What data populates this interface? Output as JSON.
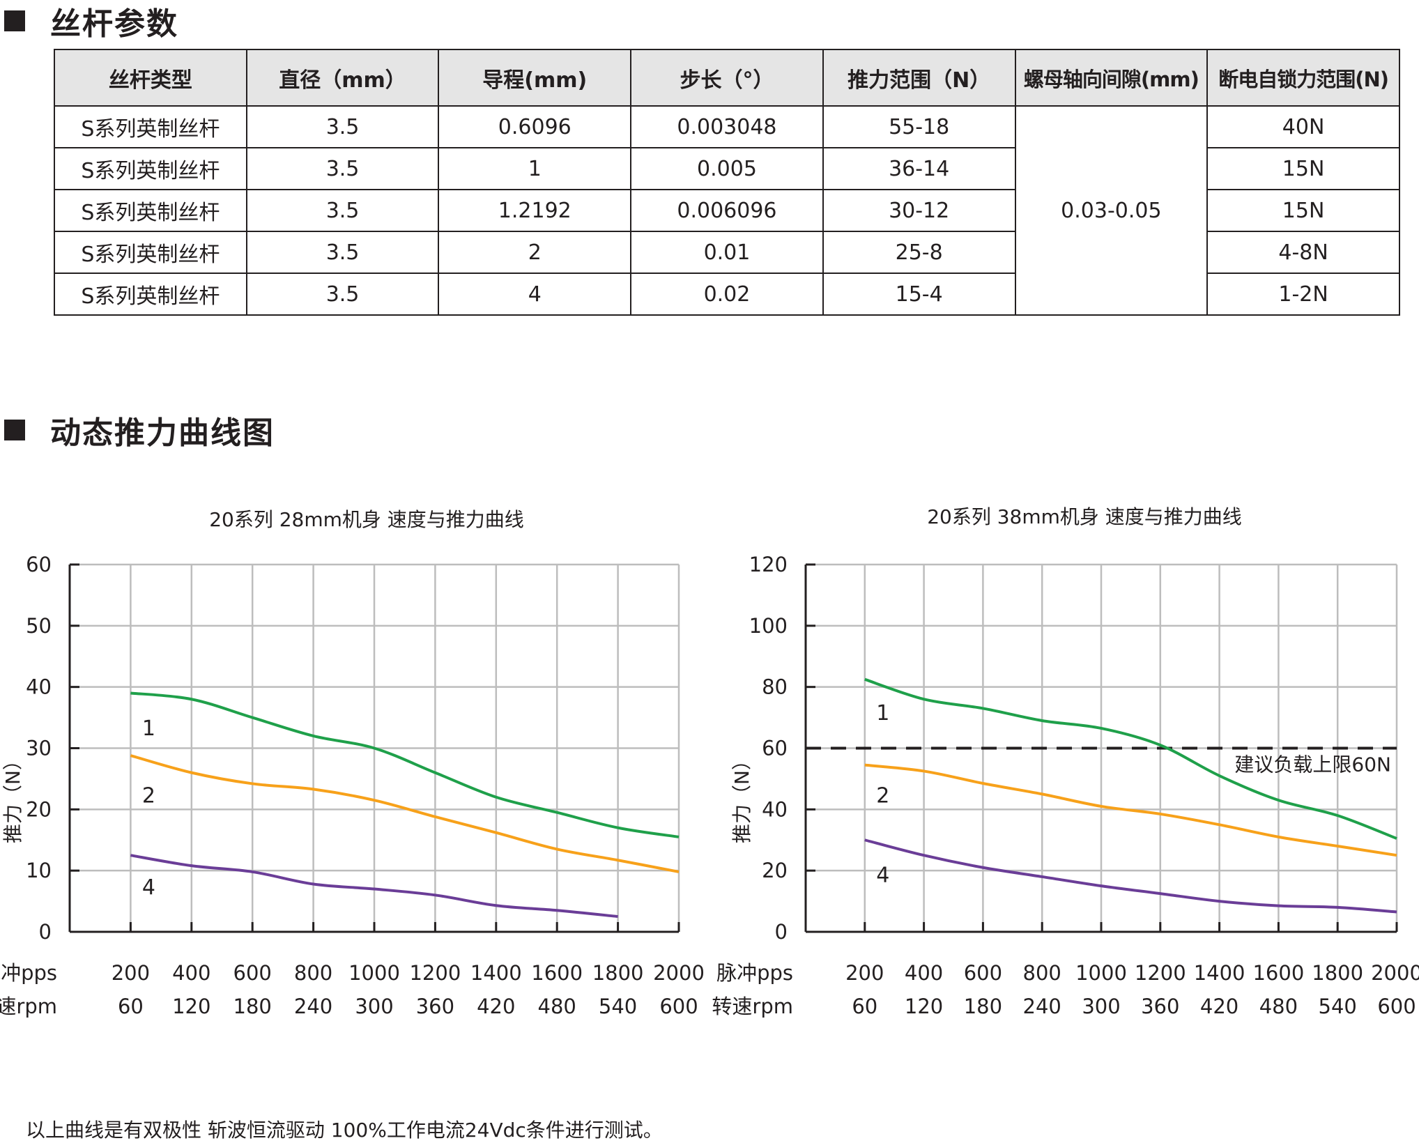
{
  "section1": {
    "title": "丝杆参数"
  },
  "table": {
    "headers": [
      "丝杆类型",
      "直径（mm）",
      "导程(mm)",
      "步长（°）",
      "推力范围（N）",
      "螺母轴向间隙(mm)",
      "断电自锁力范围(N)"
    ],
    "rows": [
      [
        "S系列英制丝杆",
        "3.5",
        "0.6096",
        "0.003048",
        "55-18",
        "40N"
      ],
      [
        "S系列英制丝杆",
        "3.5",
        "1",
        "0.005",
        "36-14",
        "15N"
      ],
      [
        "S系列英制丝杆",
        "3.5",
        "1.2192",
        "0.006096",
        "30-12",
        "15N"
      ],
      [
        "S系列英制丝杆",
        "3.5",
        "2",
        "0.01",
        "25-8",
        "4-8N"
      ],
      [
        "S系列英制丝杆",
        "3.5",
        "4",
        "0.02",
        "15-4",
        "1-2N"
      ]
    ],
    "merged_backlash": "0.03-0.05"
  },
  "section2": {
    "title": "动态推力曲线图"
  },
  "footer": "以上曲线是有双极性 斩波恒流驱动 100%工作电流24Vdc条件进行测试。",
  "chart_data": [
    {
      "type": "line",
      "title": "20系列 28mm机身 速度与推力曲线",
      "ylabel": "推力（N）",
      "ylim": [
        0,
        60
      ],
      "yticks": [
        0,
        10,
        20,
        30,
        40,
        50,
        60
      ],
      "xlim": [
        0,
        2000
      ],
      "x": [
        200,
        400,
        600,
        800,
        1000,
        1200,
        1400,
        1600,
        1800,
        2000
      ],
      "x_row_label": "脉冲pps",
      "x2_row_label": "转速rpm",
      "x2": [
        60,
        120,
        180,
        240,
        300,
        360,
        420,
        480,
        540,
        600
      ],
      "grid": true,
      "series": [
        {
          "name": "1",
          "color": "#1fa04a",
          "values": [
            39,
            38,
            35,
            32,
            30,
            26,
            22,
            19.5,
            17,
            15.5
          ]
        },
        {
          "name": "2",
          "color": "#f7a11a",
          "values": [
            28.8,
            26,
            24.2,
            23.3,
            21.5,
            18.8,
            16.2,
            13.5,
            11.7,
            9.8
          ]
        },
        {
          "name": "4",
          "color": "#6a3d97",
          "values": [
            12.5,
            10.8,
            9.8,
            7.8,
            7,
            6,
            4.3,
            3.5,
            2.5,
            null
          ]
        }
      ],
      "label_values": [
        33.5,
        22.5,
        7.5
      ]
    },
    {
      "type": "line",
      "title": "20系列 38mm机身 速度与推力曲线",
      "ylabel": "推力（N）",
      "ylim": [
        0,
        120
      ],
      "yticks": [
        0,
        20,
        40,
        60,
        80,
        100,
        120
      ],
      "xlim": [
        0,
        2000
      ],
      "x": [
        200,
        400,
        600,
        800,
        1000,
        1200,
        1400,
        1600,
        1800,
        2000
      ],
      "x_row_label": "脉冲pps",
      "x2_row_label": "转速rpm",
      "x2": [
        60,
        120,
        180,
        240,
        300,
        360,
        420,
        480,
        540,
        600
      ],
      "grid": true,
      "series": [
        {
          "name": "1",
          "color": "#1fa04a",
          "values": [
            82.5,
            76,
            73,
            69,
            66.5,
            61,
            51,
            43,
            38,
            30.5
          ]
        },
        {
          "name": "2",
          "color": "#f7a11a",
          "values": [
            54.5,
            52.5,
            48.5,
            45,
            41,
            38.5,
            35,
            31,
            28,
            25
          ]
        },
        {
          "name": "4",
          "color": "#6a3d97",
          "values": [
            30,
            25,
            21,
            18,
            15,
            12.5,
            10,
            8.5,
            8,
            6.5
          ]
        }
      ],
      "label_values": [
        72,
        45,
        19
      ],
      "reference_line": {
        "value": 60,
        "label": "建议负载上限60N",
        "style": "dashed",
        "color": "#231f20"
      }
    }
  ]
}
